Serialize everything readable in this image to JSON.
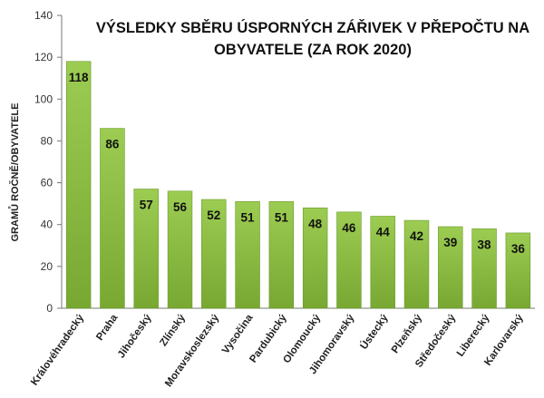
{
  "chart_data": {
    "type": "bar",
    "title_lines": [
      "VÝSLEDKY SBĚRU ÚSPORNÝCH ZÁŘIVEK V PŘEPOČTU NA",
      "OBYVATELE (ZA ROK 2020)"
    ],
    "ylabel": "GRAMŮ ROČNĚ/OBYVATELE",
    "ylim": [
      0,
      140
    ],
    "yticks": [
      0,
      20,
      40,
      60,
      80,
      100,
      120,
      140
    ],
    "grid": false,
    "legend": "none",
    "categories": [
      "Královéhradecký",
      "Praha",
      "Jihočeský",
      "Zlínský",
      "Moravskoslezský",
      "Vysočina",
      "Pardubický",
      "Olomoucký",
      "Jihomoravský",
      "Ústecký",
      "Plzeňský",
      "Středočeský",
      "Liberecký",
      "Karlovarský"
    ],
    "values": [
      118,
      86,
      57,
      56,
      52,
      51,
      51,
      48,
      46,
      44,
      42,
      39,
      38,
      36
    ],
    "colors": {
      "bar_top": "#9ccc52",
      "bar_bottom": "#78a832",
      "bar_edge": "#6a9a2a",
      "axis": "#777777"
    }
  }
}
